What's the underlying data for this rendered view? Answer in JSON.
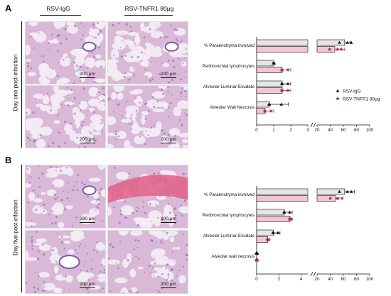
{
  "figure": {
    "panels": [
      {
        "letter": "A",
        "row_label": "Day one post-infection",
        "col_headers": [
          "RSV-IgG",
          "RSV-TNFR1 80μg"
        ],
        "scale_labels": [
          "200 μm",
          "200 μm",
          "200 μm",
          "200 μm"
        ]
      },
      {
        "letter": "B",
        "row_label": "Day five post-infection",
        "scale_labels": [
          "200 μm",
          "200 μm",
          "200 μm",
          "200 μm"
        ]
      }
    ],
    "colors": {
      "igg_fill": "#e6e6e6",
      "tnfr1_fill": "#f4c6cf",
      "tnfr1_point": "#a0285a",
      "tissue_bg": "#d9b8d8",
      "tissue_dark": "#7d5aa6",
      "tissue_light": "#f3ecf3",
      "blood": "#e05f86"
    }
  },
  "chart_data": [
    {
      "type": "bar",
      "orientation": "horizontal",
      "categories": [
        "% Paraenchyma involved",
        "Peribronchial lymphocytes",
        "Alveolar Luminar Exudate",
        "Alveolar Wall Necrosis"
      ],
      "series": [
        {
          "name": "RSV-IgG",
          "values": [
            62,
            1.0,
            1.5,
            0.75
          ],
          "errors": [
            8,
            0,
            0.5,
            1.1
          ],
          "marker": "triangle"
        },
        {
          "name": "RSV-TNFR1 80μg",
          "values": [
            47,
            1.5,
            1.5,
            0.5
          ],
          "errors": [
            15,
            0.5,
            0.5,
            0.5
          ],
          "marker": "star"
        }
      ],
      "axis_broken": true,
      "xticks_left": [
        "0",
        "1",
        "2",
        "3"
      ],
      "xticks_right": [
        "20",
        "40",
        "60",
        "80",
        "100"
      ],
      "legend": [
        "RSV-IgG",
        "RSV-TNFR1 80μg"
      ]
    },
    {
      "type": "bar",
      "orientation": "horizontal",
      "categories": [
        "% Paraenchyma involved",
        "Peribronchial lymphocytes",
        "Alveolar Luminar Exudate",
        "Alveolar wall necrosis"
      ],
      "series": [
        {
          "name": "RSV-IgG",
          "values": [
            62,
            2.5,
            1.5,
            0.0
          ],
          "errors": [
            15,
            0.7,
            0.6,
            0.05
          ],
          "marker": "triangle"
        },
        {
          "name": "RSV-TNFR1 80μg",
          "values": [
            48,
            3.0,
            1.0,
            0.0
          ],
          "errors": [
            2,
            0.15,
            0.1,
            0.05
          ],
          "marker": "star"
        }
      ],
      "axis_broken": true,
      "xticks_left": [
        "0",
        "2",
        "4"
      ],
      "xticks_right": [
        "20",
        "40",
        "60",
        "80",
        "100"
      ]
    }
  ]
}
